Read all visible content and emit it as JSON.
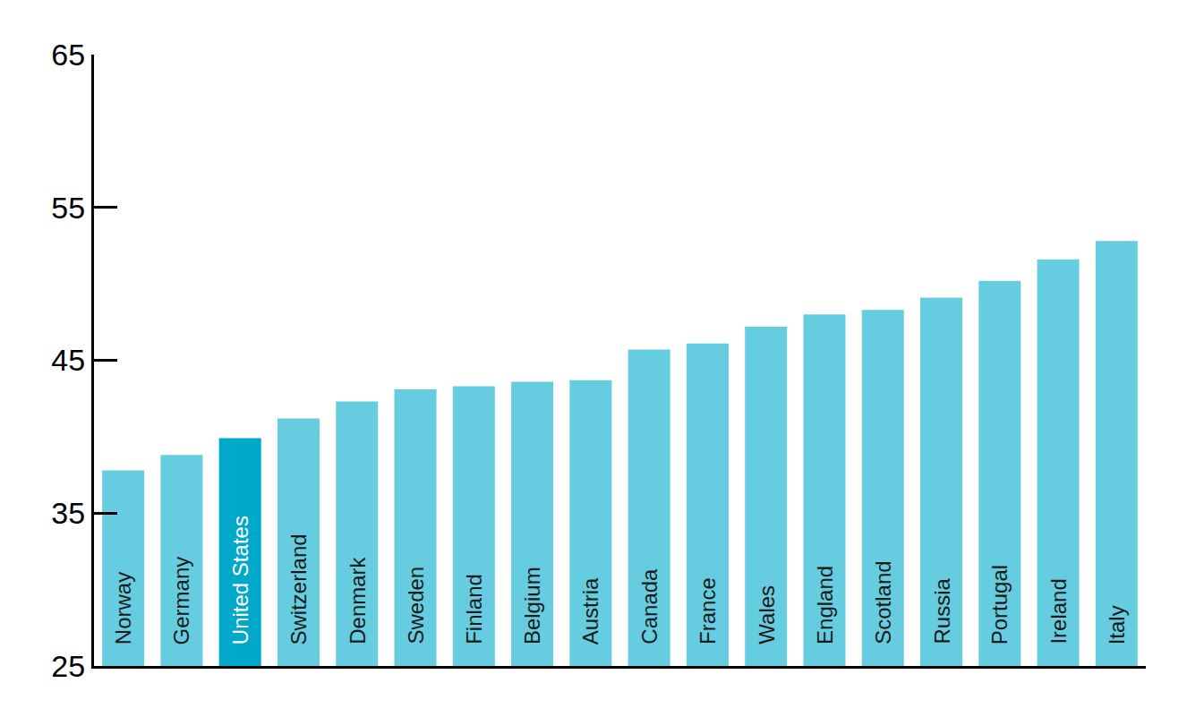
{
  "chart_data": {
    "type": "bar",
    "categories": [
      "Norway",
      "Germany",
      "United States",
      "Switzerland",
      "Denmark",
      "Sweden",
      "Finland",
      "Belgium",
      "Austria",
      "Canada",
      "France",
      "Wales",
      "England",
      "Scotland",
      "Russia",
      "Portugal",
      "Ireland",
      "Italy"
    ],
    "values": [
      37.8,
      38.8,
      39.9,
      41.2,
      42.3,
      43.1,
      43.3,
      43.6,
      43.7,
      45.7,
      46.1,
      47.2,
      48.0,
      48.3,
      49.1,
      50.2,
      51.6,
      52.8
    ],
    "colors": [
      "#66cce0",
      "#66cce0",
      "#00a9c9",
      "#66cce0",
      "#66cce0",
      "#66cce0",
      "#66cce0",
      "#66cce0",
      "#66cce0",
      "#66cce0",
      "#66cce0",
      "#66cce0",
      "#66cce0",
      "#66cce0",
      "#66cce0",
      "#66cce0",
      "#66cce0",
      "#66cce0"
    ],
    "ylim": [
      25,
      65
    ],
    "yticks": [
      25,
      35,
      45,
      55,
      65
    ],
    "grid": false,
    "tick_labels": "y"
  }
}
